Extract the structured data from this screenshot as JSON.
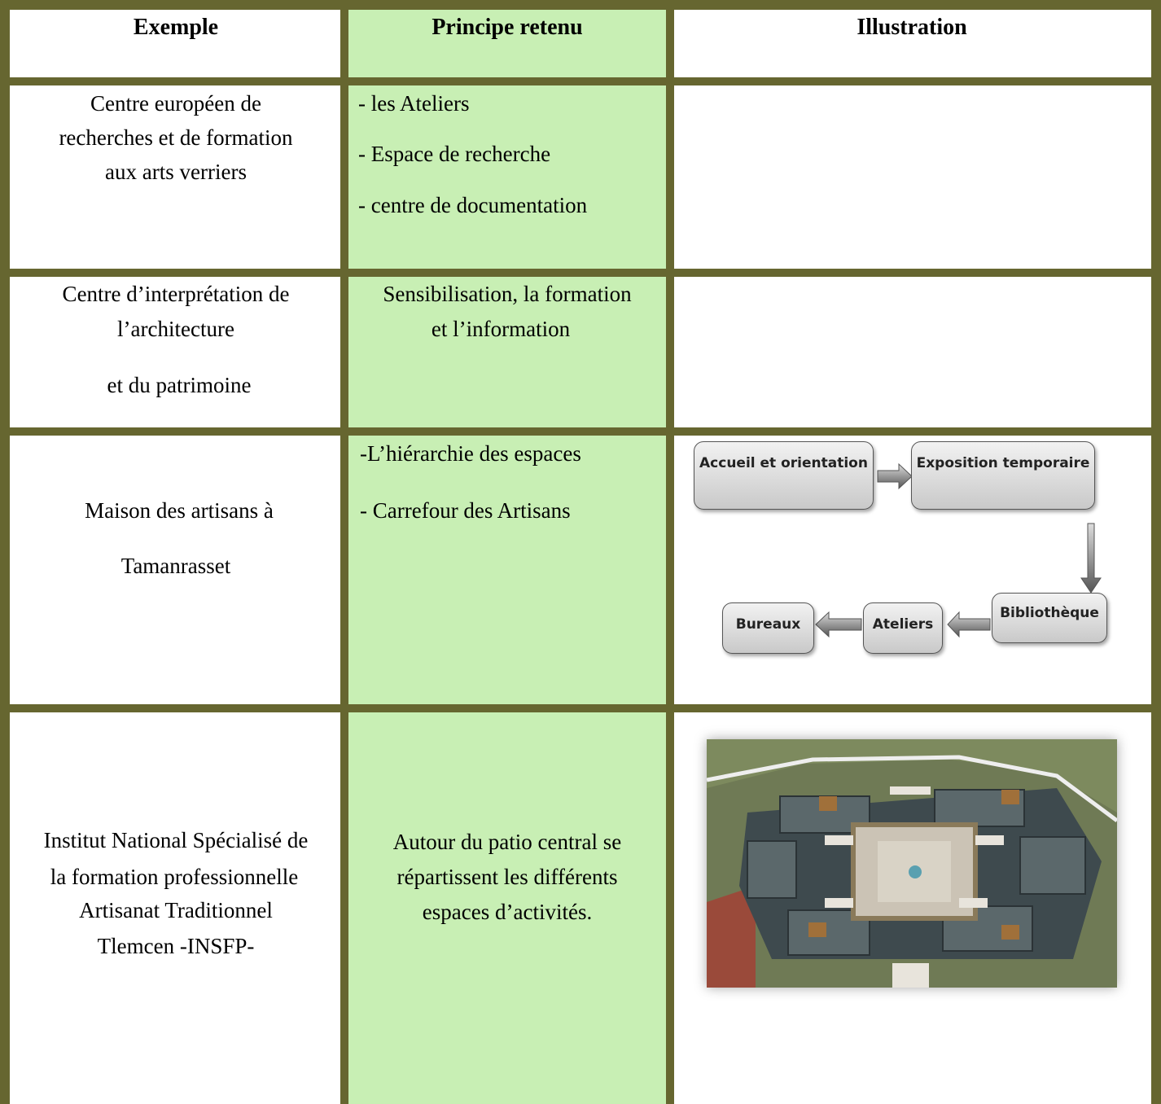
{
  "table": {
    "header": [
      "Exemple",
      "Principe retenu",
      "Illustration"
    ],
    "rows": [
      {
        "example": [
          "Centre européen de",
          "recherches et de formation",
          "aux arts verriers"
        ],
        "principle": [
          "- les Ateliers",
          "- Espace de recherche",
          "- centre de documentation"
        ]
      },
      {
        "example": [
          "Centre d’interprétation de",
          "l’architecture",
          "et du patrimoine"
        ],
        "principle": [
          "Sensibilisation, la formation",
          "et l’information"
        ]
      },
      {
        "example": [
          "Maison des artisans à",
          "Tamanrasset"
        ],
        "principle": [
          "-L’hiérarchie des espaces",
          "- Carrefour des Artisans"
        ],
        "diagram": [
          "Accueil et orientation",
          "Exposition temporaire",
          "Bibliothèque",
          "Ateliers",
          "Bureaux"
        ]
      },
      {
        "example": [
          "Institut National Spécialisé de",
          "la formation professionnelle",
          "Artisanat Traditionnel",
          "Tlemcen -INSFP-"
        ],
        "principle": [
          "Autour du patio central se",
          "répartissent les différents",
          "espaces d’activités."
        ]
      }
    ]
  }
}
